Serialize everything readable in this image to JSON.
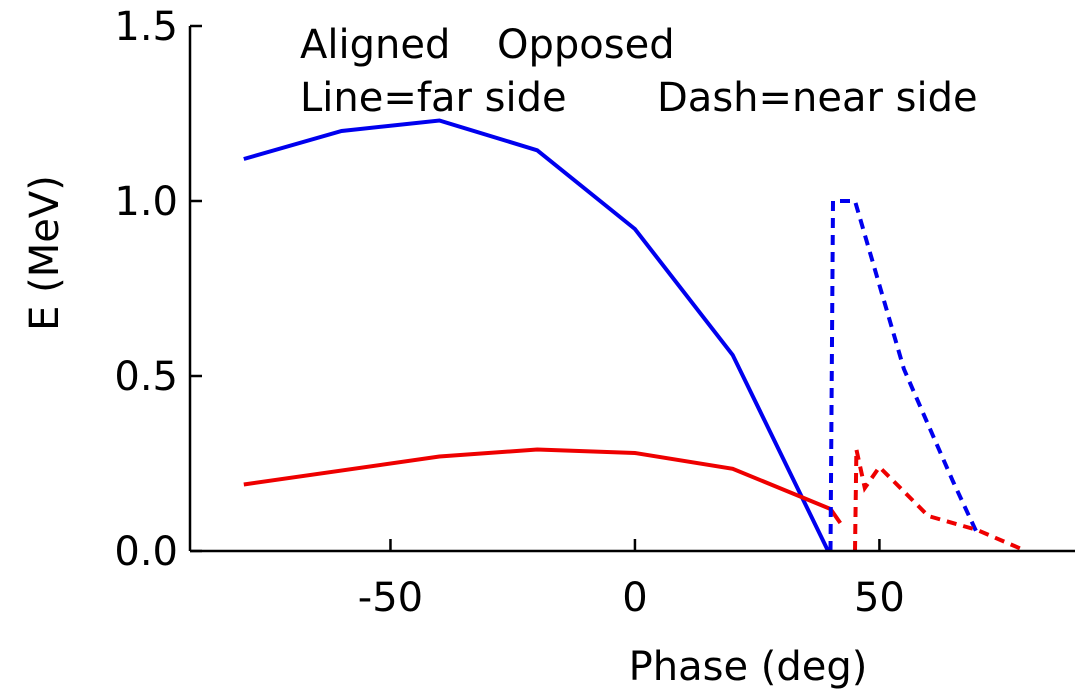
{
  "chart_data": {
    "type": "line",
    "title": "",
    "xlabel": "Phase (deg)",
    "ylabel": "E (MeV)",
    "xlim": [
      -91,
      90
    ],
    "ylim": [
      0,
      1.5
    ],
    "xticks": [
      -50,
      0,
      50
    ],
    "xtick_labels": [
      "-50",
      "0",
      "50"
    ],
    "yticks": [
      0.0,
      0.5,
      1.0,
      1.5
    ],
    "ytick_labels": [
      "0.0",
      "0.5",
      "1.0",
      "1.5"
    ],
    "grid": false,
    "legend": {
      "placement": "top-left",
      "entries": [
        {
          "label": "Aligned",
          "color": "#0000ee"
        },
        {
          "label": "Opposed",
          "color": "#ee0000"
        }
      ],
      "notes": [
        "Line=far side",
        "Dash=near side"
      ]
    },
    "series": [
      {
        "style": "solid",
        "color": "#0000ee",
        "x": [
          -80,
          -60,
          -40,
          -20,
          0,
          20,
          39.5
        ],
        "y": [
          1.12,
          1.2,
          1.23,
          1.145,
          0.92,
          0.56,
          0.0
        ]
      },
      {
        "style": "solid",
        "color": "#ee0000",
        "x": [
          -80,
          -40,
          -20,
          0,
          20,
          40,
          42
        ],
        "y": [
          0.19,
          0.27,
          0.29,
          0.28,
          0.235,
          0.12,
          0.08
        ]
      },
      {
        "style": "dashed",
        "color": "#0000ee",
        "x": [
          40,
          40.5,
          45,
          50,
          55,
          60,
          65,
          70
        ],
        "y": [
          0.0,
          1.0,
          1.0,
          0.76,
          0.52,
          0.36,
          0.2,
          0.05
        ]
      },
      {
        "style": "dashed",
        "color": "#ee0000",
        "x": [
          45,
          45.3,
          47,
          50,
          55,
          60,
          70,
          80
        ],
        "y": [
          0.0,
          0.29,
          0.18,
          0.24,
          0.17,
          0.1,
          0.06,
          0.0
        ]
      }
    ]
  }
}
